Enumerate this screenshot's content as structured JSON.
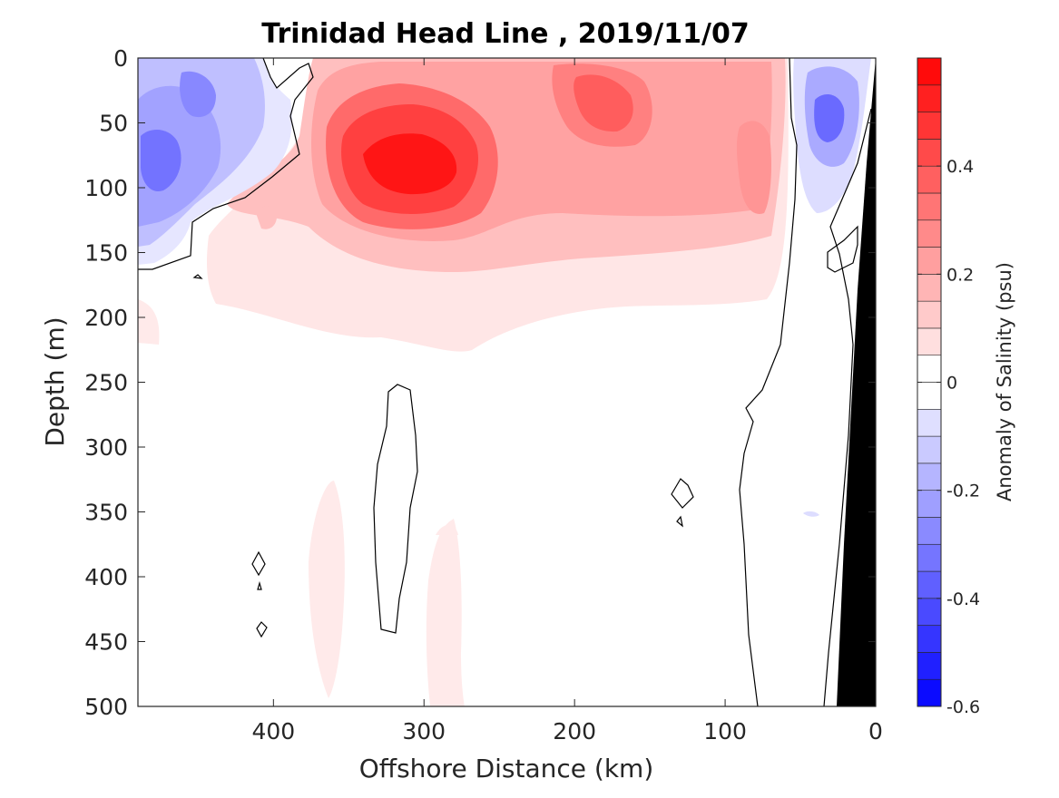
{
  "chart_data": {
    "type": "heatmap",
    "title": "Trinidad Head Line , 2019/11/07",
    "xlabel": "Offshore Distance (km)",
    "ylabel": "Depth (m)",
    "x_reversed": true,
    "y_reversed": true,
    "xlim": [
      490,
      0
    ],
    "ylim": [
      0,
      500
    ],
    "x_ticks": [
      400,
      300,
      200,
      100,
      0
    ],
    "y_ticks": [
      0,
      50,
      100,
      150,
      200,
      250,
      300,
      350,
      400,
      450,
      500
    ],
    "colorbar": {
      "label": "Anomaly of Salinity (psu)",
      "range": [
        -0.6,
        0.6
      ],
      "step": 0.05,
      "ticks": [
        0.4,
        0.2,
        0,
        -0.2,
        -0.4,
        -0.6
      ],
      "tick_labels": [
        "0.4",
        "0.2",
        "0",
        "-0.2",
        "-0.4",
        "-0.6"
      ],
      "colormap": "blue-white-red",
      "negative_color": "#0000ff",
      "positive_color": "#ff0000",
      "zero_color": "#ffffff"
    },
    "features": [
      {
        "name": "High salinity core",
        "sign": "positive",
        "center_km": 315,
        "center_depth_m": 95,
        "peak": 0.55
      },
      {
        "name": "Upper positive anomaly",
        "sign": "positive",
        "center_km": 185,
        "center_depth_m": 40,
        "peak": 0.35
      },
      {
        "name": "Nearshore positive anomaly",
        "sign": "positive",
        "center_km": 75,
        "center_depth_m": 85,
        "peak": 0.25
      },
      {
        "name": "Offshore low salinity",
        "sign": "negative",
        "center_km": 465,
        "center_depth_m": 85,
        "peak": -0.35
      },
      {
        "name": "Upper offshore low salinity",
        "sign": "negative",
        "center_km": 445,
        "center_depth_m": 35,
        "peak": -0.3
      },
      {
        "name": "Coastal low salinity",
        "sign": "negative",
        "center_km": 37,
        "center_depth_m": 45,
        "peak": -0.35
      },
      {
        "name": "Deep weak positive column",
        "sign": "positive",
        "center_km": 355,
        "center_depth_m": 410,
        "peak": 0.05
      },
      {
        "name": "Deep weak positive column 2",
        "sign": "positive",
        "center_km": 285,
        "center_depth_m": 440,
        "peak": 0.05
      }
    ],
    "seafloor": {
      "color": "#000000",
      "shape": "wedge at right edge (near 0 km)"
    },
    "zero_contour": {
      "color": "#000000",
      "style": "thin line"
    },
    "grid": false
  }
}
